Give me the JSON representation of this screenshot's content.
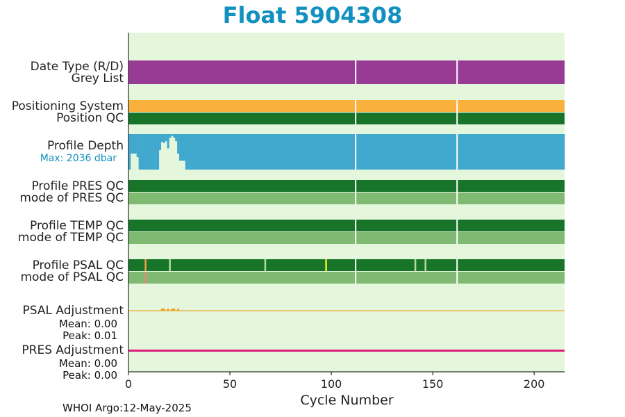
{
  "chart_data": {
    "type": "bar",
    "title": "Float 5904308",
    "xlabel": "Cycle Number",
    "xlim": [
      0,
      215
    ],
    "xticks": [
      "0",
      "50",
      "100",
      "150",
      "200"
    ],
    "rows": [
      {
        "label": "Date Type (R/D)",
        "sublabel": "Grey List",
        "color": "#983b95"
      },
      {
        "label": "Positioning System",
        "sublabel": "Position QC",
        "colors": [
          "#fab03c",
          "#187429"
        ]
      },
      {
        "label": "Profile Depth",
        "max_note": "Max: 2036 dbar",
        "color": "#41a8ce",
        "depth_profile": [
          {
            "x": [
              0,
              1
            ],
            "depth_frac": 1.0
          },
          {
            "x": [
              1,
              4
            ],
            "depth_frac": 0.55
          },
          {
            "x": [
              4,
              5
            ],
            "depth_frac": 0.65
          },
          {
            "x": [
              5,
              15
            ],
            "depth_frac": 1.0
          },
          {
            "x": [
              15,
              16
            ],
            "depth_frac": 0.45
          },
          {
            "x": [
              16,
              17
            ],
            "depth_frac": 0.22
          },
          {
            "x": [
              17,
              18
            ],
            "depth_frac": 0.25
          },
          {
            "x": [
              18,
              19
            ],
            "depth_frac": 0.2
          },
          {
            "x": [
              19,
              20
            ],
            "depth_frac": 0.4
          },
          {
            "x": [
              20,
              21
            ],
            "depth_frac": 0.1
          },
          {
            "x": [
              21,
              22
            ],
            "depth_frac": 0.05
          },
          {
            "x": [
              22,
              23
            ],
            "depth_frac": 0.1
          },
          {
            "x": [
              23,
              24
            ],
            "depth_frac": 0.2
          },
          {
            "x": [
              24,
              25
            ],
            "depth_frac": 0.55
          },
          {
            "x": [
              25,
              28
            ],
            "depth_frac": 0.75
          },
          {
            "x": [
              28,
              215
            ],
            "depth_frac": 1.0
          }
        ]
      },
      {
        "label": "Profile PRES QC",
        "sublabel": "mode of PRES QC",
        "colors": [
          "#187429",
          "#80ba72"
        ]
      },
      {
        "label": "Profile TEMP QC",
        "sublabel": "mode of TEMP QC",
        "colors": [
          "#187429",
          "#80ba72"
        ]
      },
      {
        "label": "Profile PSAL QC",
        "sublabel": "mode of PSAL QC",
        "colors": [
          "#187429",
          "#80ba72"
        ],
        "flags": [
          {
            "cycle": 8,
            "color": "#f0a040",
            "row": "top"
          },
          {
            "cycle": 8,
            "color": "#e88878",
            "row": "bottom"
          },
          {
            "cycle": 20,
            "color": "#b8d8a8",
            "row": "top"
          },
          {
            "cycle": 67,
            "color": "#b8d8a8",
            "row": "top"
          },
          {
            "cycle": 97,
            "color": "#f5ef1a",
            "row": "top"
          },
          {
            "cycle": 141,
            "color": "#b8d8a8",
            "row": "top"
          },
          {
            "cycle": 146,
            "color": "#b8d8a8",
            "row": "top"
          }
        ]
      },
      {
        "label": "PSAL Adjustment",
        "mean_label": "Mean: 0.00",
        "peak_label": "Peak: 0.01",
        "color": "#f0a020"
      },
      {
        "label": "PRES Adjustment",
        "mean_label": "Mean: 0.00",
        "peak_label": "Peak: 0.00",
        "color": "#dc1e78"
      }
    ],
    "gaps": [
      112,
      162
    ]
  },
  "footer": "WHOI Argo:12-May-2025",
  "colors": {
    "background": "#e4f7dd",
    "title": "#1290bf"
  }
}
